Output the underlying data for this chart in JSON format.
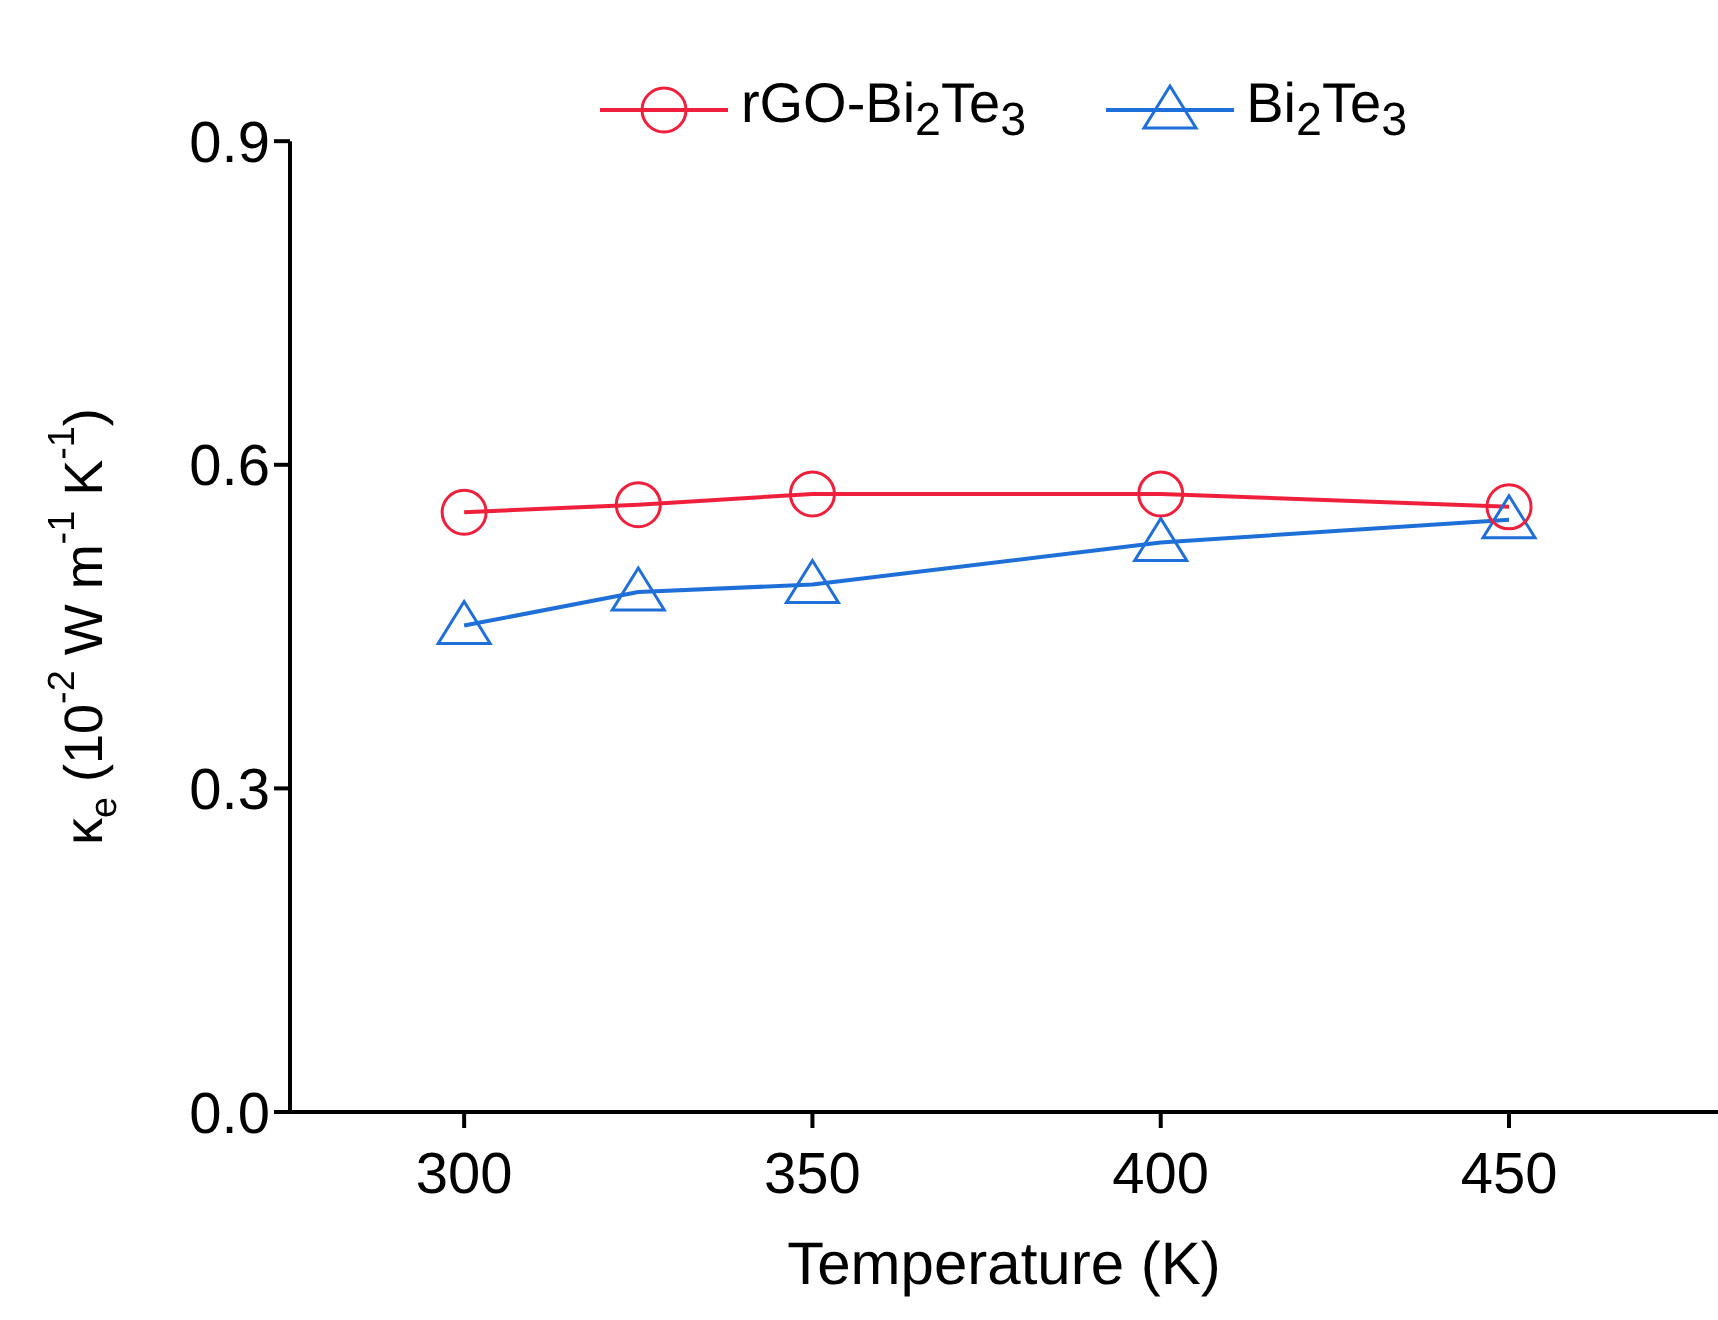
{
  "chart_data": {
    "type": "line",
    "xlabel": "Temperature (K)",
    "ylabel": "κ$_{e}$ (10$^{-2}$ W m$^{-1}$ K$^{-1}$)",
    "x": [
      300,
      325,
      350,
      400,
      450
    ],
    "series": [
      {
        "name": "rGO-Bi$_{2}$Te$_{3}$",
        "color": "#f0203c",
        "marker": "circle",
        "values": [
          0.556,
          0.563,
          0.573,
          0.573,
          0.561
        ]
      },
      {
        "name": "Bi$_{2}$Te$_{3}$",
        "color": "#1f6fd8",
        "marker": "triangle",
        "values": [
          0.451,
          0.482,
          0.489,
          0.528,
          0.549
        ]
      }
    ],
    "xlim": [
      275,
      480
    ],
    "xticks": [
      300,
      350,
      400,
      450
    ],
    "ylim": [
      0,
      0.9
    ],
    "yticks": [
      {
        "value": 0,
        "label": "0.0"
      },
      {
        "value": 0.3,
        "label": "0.3"
      },
      {
        "value": 0.6,
        "label": "0.6"
      },
      {
        "value": 0.9,
        "label": "0.9"
      }
    ],
    "grid": false,
    "legend": "top",
    "line_style": "solid"
  }
}
